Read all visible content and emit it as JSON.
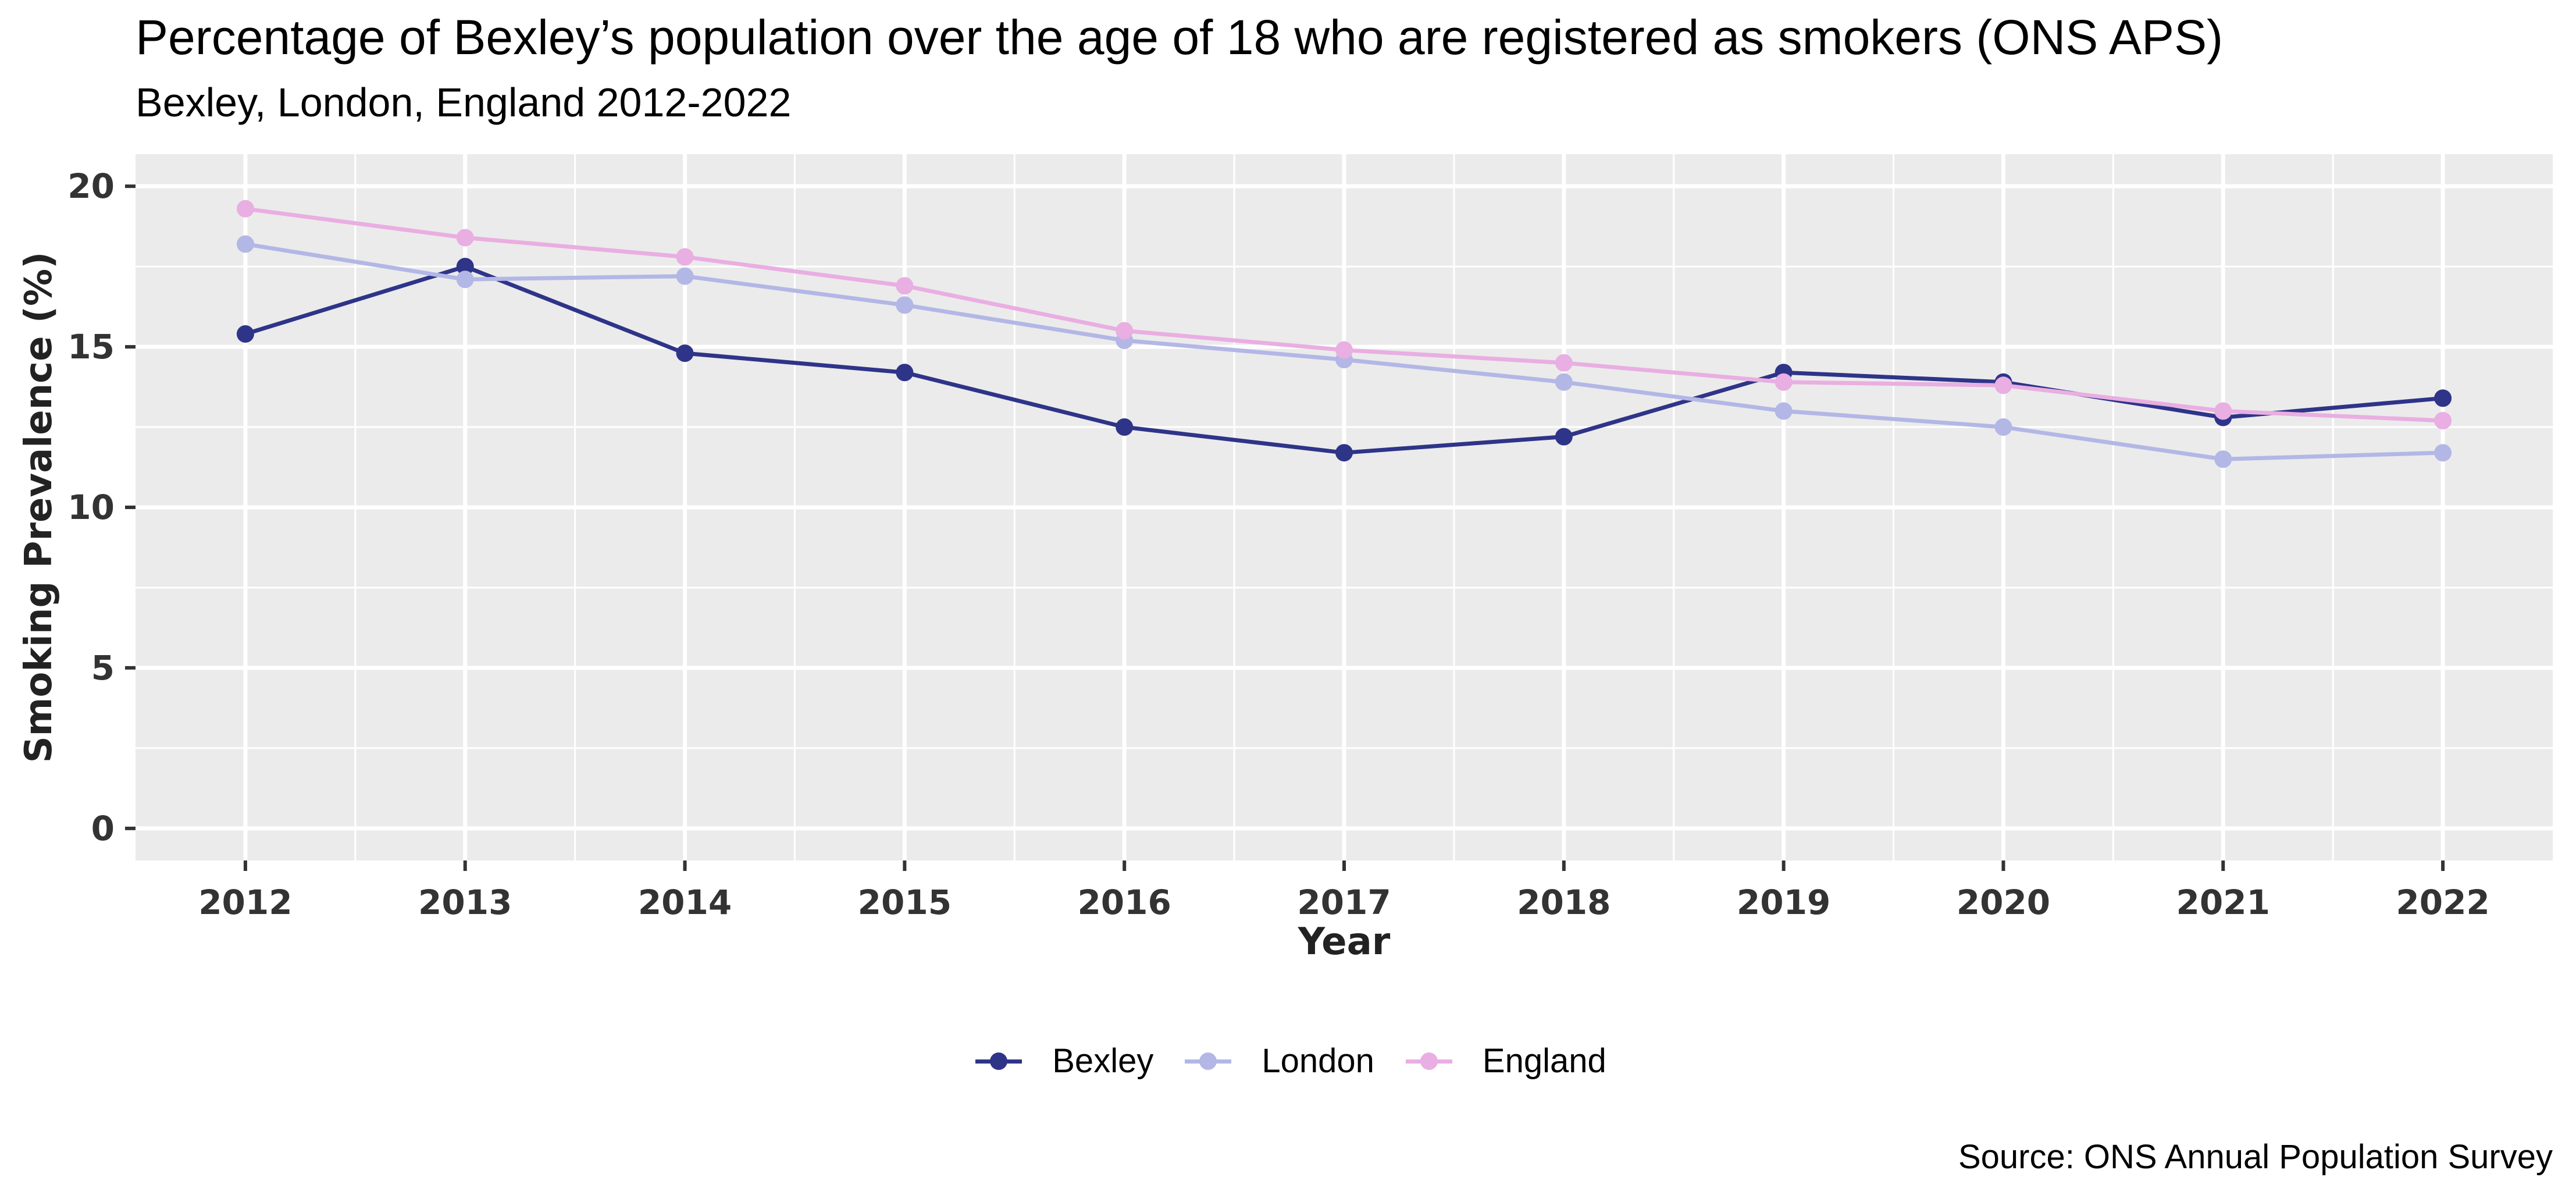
{
  "chart_data": {
    "type": "line",
    "title": "Percentage of Bexley’s population over the age of 18 who are registered as smokers (ONS APS)",
    "subtitle": "Bexley, London, England 2012-2022",
    "xlabel": "Year",
    "ylabel": "Smoking Prevalence (%)",
    "caption": "Source: ONS Annual Population Survey",
    "x": [
      2012,
      2013,
      2014,
      2015,
      2016,
      2017,
      2018,
      2019,
      2020,
      2021,
      2022
    ],
    "x_tick_labels": [
      "2012",
      "2013",
      "2014",
      "2015",
      "2016",
      "2017",
      "2018",
      "2019",
      "2020",
      "2021",
      "2022"
    ],
    "y_ticks": [
      0,
      5,
      10,
      15,
      20
    ],
    "y_tick_labels": [
      "0",
      "5",
      "10",
      "15",
      "20"
    ],
    "ylim": [
      -1,
      21
    ],
    "xlim": [
      2011.5,
      2022.5
    ],
    "grid": true,
    "legend_position": "bottom",
    "series": [
      {
        "name": "Bexley",
        "color": "#2E3488",
        "values": [
          15.4,
          17.5,
          14.8,
          14.2,
          12.5,
          11.7,
          12.2,
          14.2,
          13.9,
          12.8,
          13.4
        ]
      },
      {
        "name": "London",
        "color": "#B3B7E6",
        "values": [
          18.2,
          17.1,
          17.2,
          16.3,
          15.2,
          14.6,
          13.9,
          13.0,
          12.5,
          11.5,
          11.7
        ]
      },
      {
        "name": "England",
        "color": "#E9AEE2",
        "values": [
          19.3,
          18.4,
          17.8,
          16.9,
          15.5,
          14.9,
          14.5,
          13.9,
          13.8,
          13.0,
          12.7
        ]
      }
    ],
    "panel_background": "#EBEBEB",
    "grid_color": "#FFFFFF"
  }
}
